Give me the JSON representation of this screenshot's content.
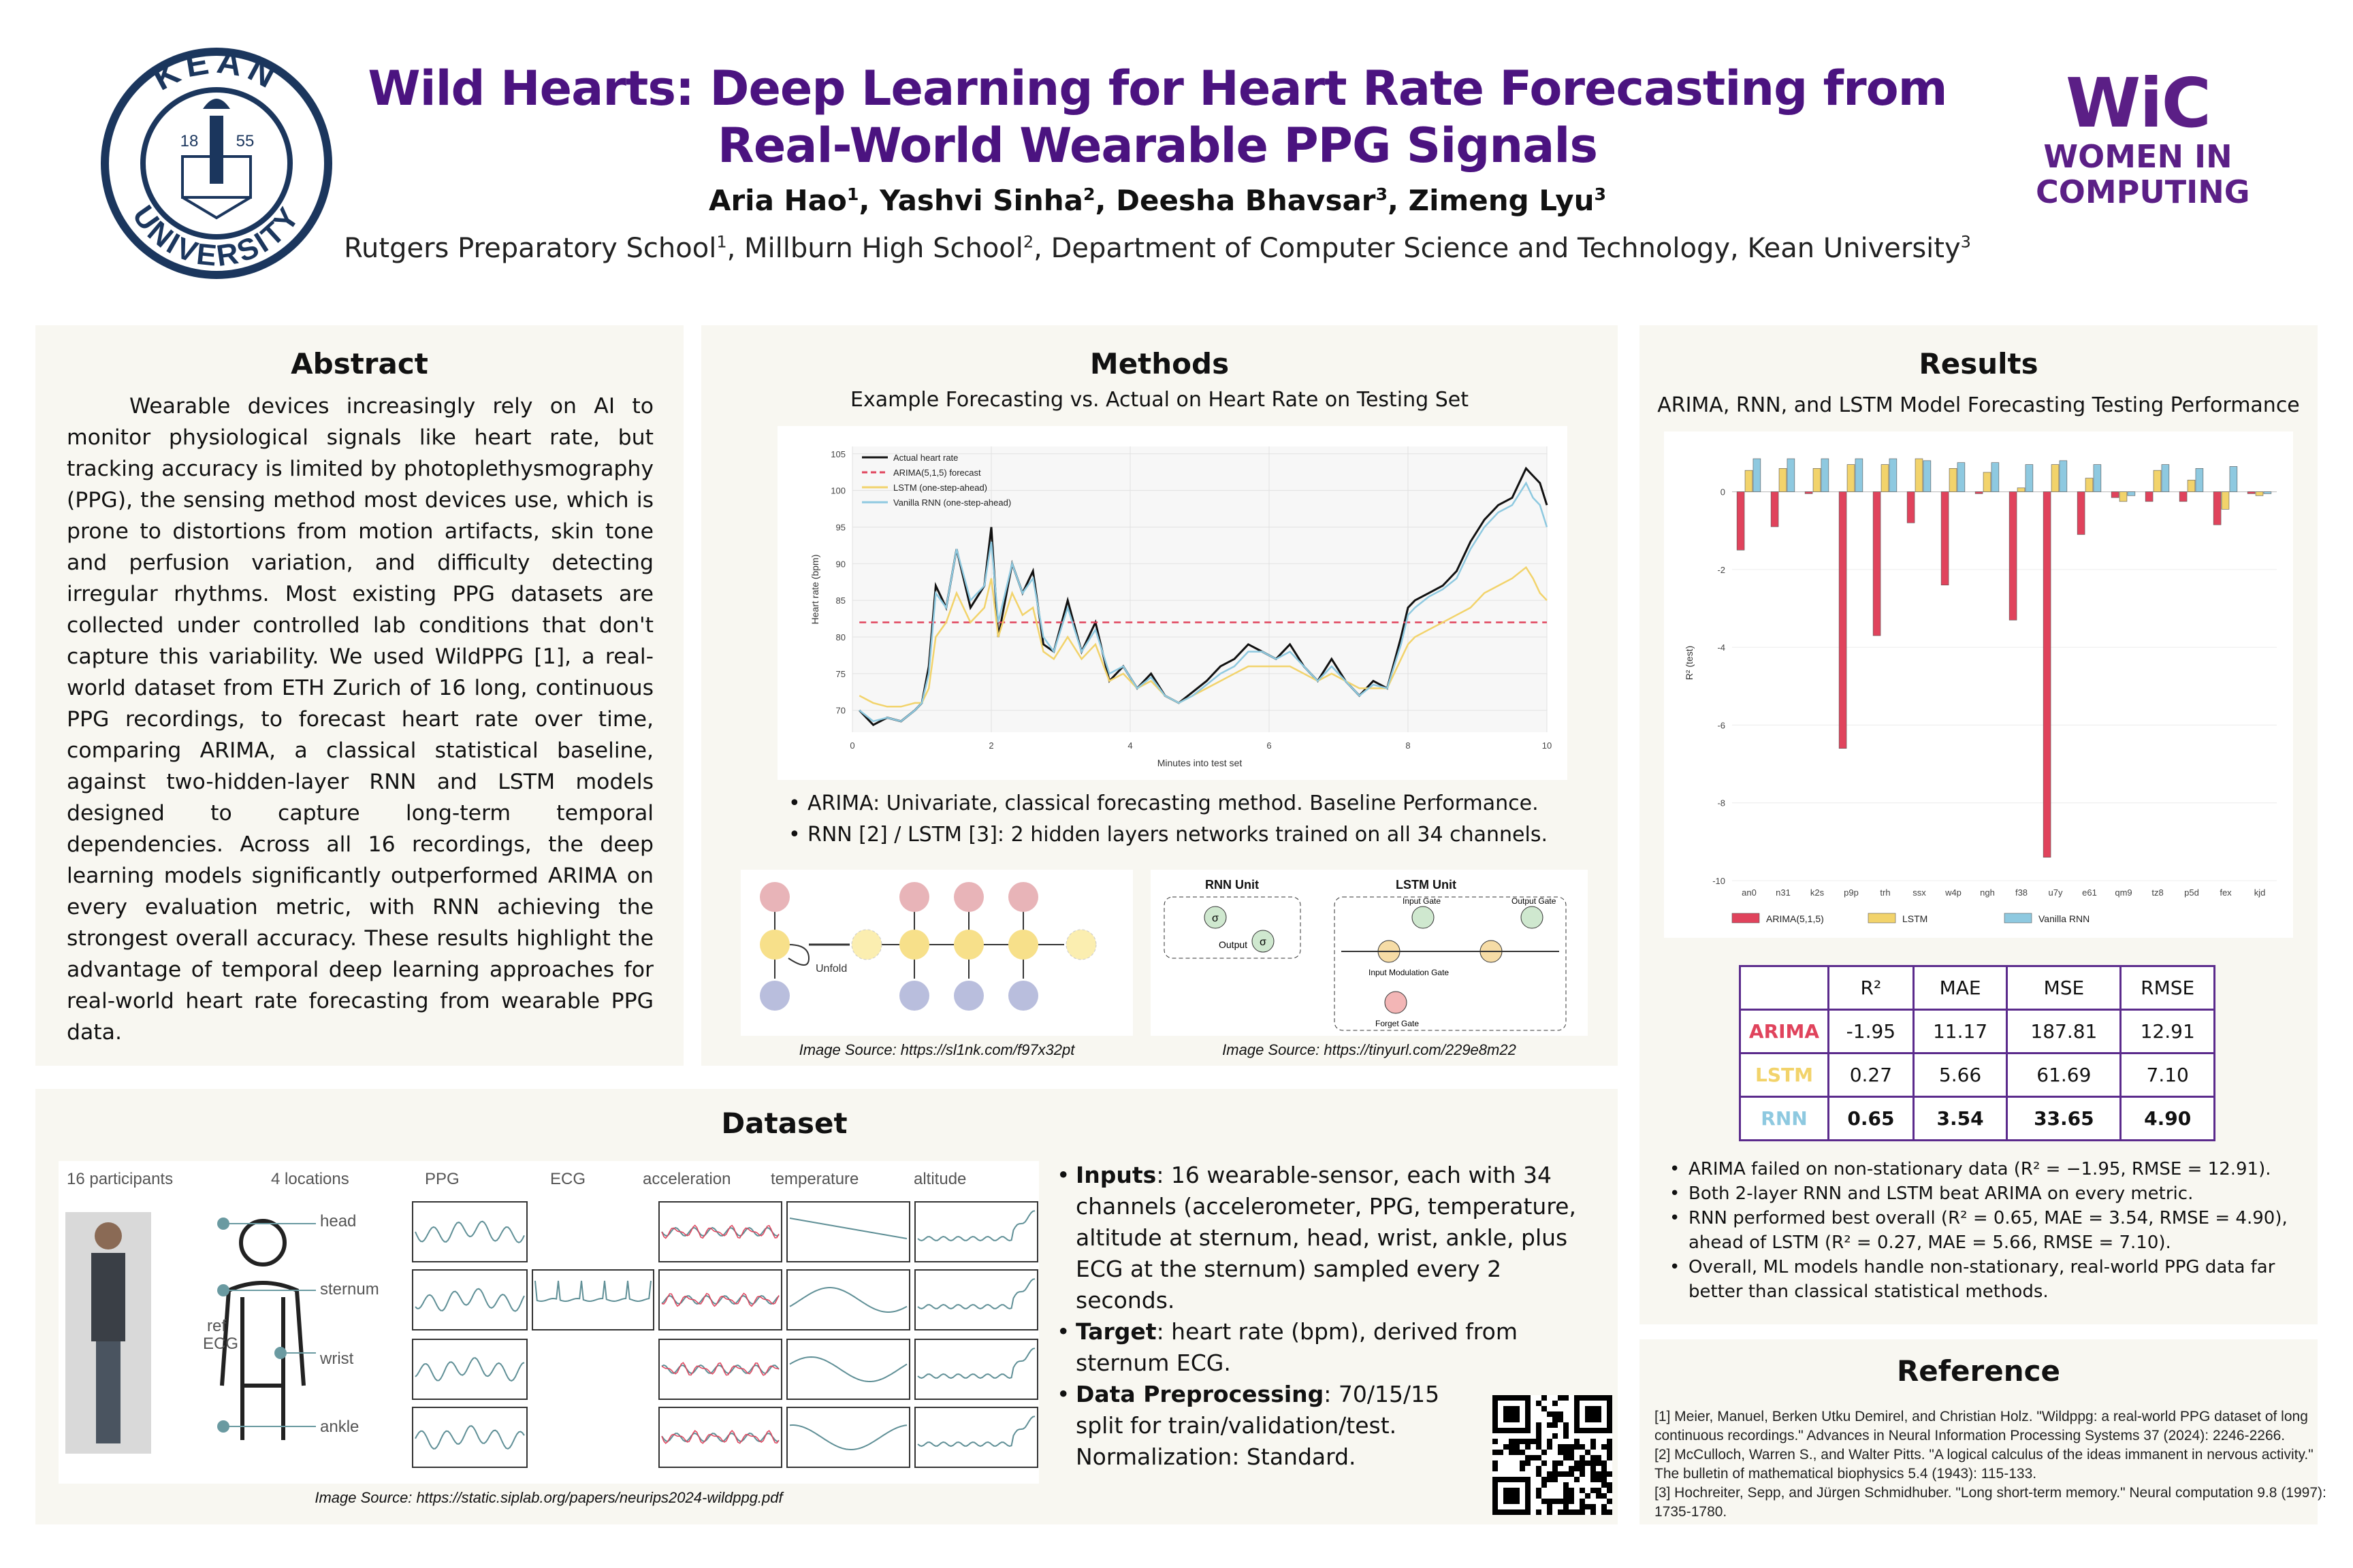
{
  "header": {
    "title_line1": "Wild Hearts: Deep Learning for Heart Rate Forecasting from",
    "title_line2": "Real-World Wearable PPG Signals",
    "authors": [
      {
        "name": "Aria Hao",
        "sup": "1"
      },
      {
        "name": "Yashvi Sinha",
        "sup": "2"
      },
      {
        "name": "Deesha Bhavsar",
        "sup": "3"
      },
      {
        "name": "Zimeng Lyu",
        "sup": "3"
      }
    ],
    "affiliations": [
      {
        "name": "Rutgers Preparatory School",
        "sup": "1"
      },
      {
        "name": "Millburn High School",
        "sup": "2"
      },
      {
        "name": "Department of Computer Science and Technology, Kean University",
        "sup": "3"
      }
    ]
  },
  "logos": {
    "kean": {
      "top": "KEAN",
      "bottom": "UNIVERSITY",
      "year_left": "18",
      "year_right": "55"
    },
    "wic": {
      "mark": "WiC",
      "line1": "WOMEN IN",
      "line2": "COMPUTING",
      "color": "#5b1f86"
    }
  },
  "abstract": {
    "heading": "Abstract",
    "text": "Wearable devices increasingly rely on AI to monitor physiological signals like heart rate, but tracking accuracy is limited by photoplethysmography (PPG), the sensing method most devices use, which is prone to distortions from motion artifacts, skin tone and perfusion variation, and difficulty detecting irregular rhythms. Most existing PPG datasets are collected under controlled lab conditions that don't capture this variability. We used WildPPG [1], a real-world dataset from ETH Zurich of 16 long, continuous PPG recordings, to forecast heart rate over time, comparing ARIMA, a classical statistical baseline, against two-hidden-layer RNN and LSTM models designed to capture long-term temporal dependencies. Across all 16 recordings, the deep learning models significantly outperformed ARIMA on every evaluation metric, with RNN achieving the strongest overall accuracy. These results highlight the advantage of temporal deep learning approaches for real-world heart rate forecasting from wearable PPG data."
  },
  "methods": {
    "heading": "Methods",
    "chart_title": "Example Forecasting vs. Actual on Heart Rate on Testing Set",
    "bullets": [
      "ARIMA: Univariate, classical forecasting method. Baseline Performance.",
      "RNN [2] / LSTM [3]: 2 hidden layers networks trained on all 34 channels."
    ],
    "rnn_caption": "Image Source: https://sl1nk.com/f97x32pt",
    "lstm_caption": "Image Source: https://tinyurl.com/229e8m22",
    "rnn_unit_title": "RNN Unit",
    "lstm_unit_title": "LSTM Unit",
    "unfold_label": "Unfold",
    "rnn_unit_labels": {
      "output": "Output"
    },
    "lstm_unit_labels": {
      "input_gate": "Input Gate",
      "output_gate": "Output Gate",
      "modulation": "Input Modulation Gate",
      "forget": "Forget Gate"
    }
  },
  "results": {
    "heading": "Results",
    "chart_title": "ARIMA, RNN, and LSTM Model Forecasting Testing Performance",
    "table": {
      "headers": [
        "",
        "R²",
        "MAE",
        "MSE",
        "RMSE"
      ],
      "rows": [
        {
          "model": "ARIMA",
          "color": "#e0435c",
          "values": [
            "-1.95",
            "11.17",
            "187.81",
            "12.91"
          ],
          "bold": false
        },
        {
          "model": "LSTM",
          "color": "#f2d36b",
          "values": [
            "0.27",
            "5.66",
            "61.69",
            "7.10"
          ],
          "bold": false
        },
        {
          "model": "RNN",
          "color": "#8ec9e0",
          "values": [
            "0.65",
            "3.54",
            "33.65",
            "4.90"
          ],
          "bold": true
        }
      ]
    },
    "bullets": [
      "ARIMA failed on non-stationary data (R² = −1.95, RMSE = 12.91).",
      "Both 2-layer RNN and LSTM beat ARIMA on every metric.",
      "RNN performed best overall (R² = 0.65, MAE = 3.54, RMSE = 4.90), ahead of LSTM (R² = 0.27, MAE = 5.66, RMSE = 7.10).",
      "Overall, ML models handle non-stationary, real-world PPG data far better than classical statistical methods."
    ]
  },
  "dataset": {
    "heading": "Dataset",
    "fig_labels": {
      "participants": "16 participants",
      "locations": "4 locations",
      "ppg": "PPG",
      "ecg": "ECG",
      "acceleration": "acceleration",
      "temperature": "temperature",
      "altitude": "altitude",
      "head": "head",
      "sternum": "sternum",
      "wrist": "wrist",
      "ankle": "ankle",
      "ref_ecg_1": "ref",
      "ref_ecg_2": "ECG"
    },
    "caption": "Image Source: https://static.siplab.org/papers/neurips2024-wildppg.pdf",
    "bullets": [
      {
        "bold": "Inputs",
        "text": ": 16 wearable-sensor, each with 34 channels (accelerometer, PPG, temperature, altitude at sternum, head, wrist, ankle, plus ECG at the sternum) sampled every 2 seconds."
      },
      {
        "bold": "Target",
        "text": ": heart rate (bpm), derived from sternum ECG."
      },
      {
        "bold": "Data Preprocessing",
        "text": ": 70/15/15 split for train/validation/test. Normalization: Standard."
      }
    ]
  },
  "reference": {
    "heading": "Reference",
    "items": [
      "[1] Meier, Manuel, Berken Utku Demirel, and Christian Holz. \"Wildppg: a real-world PPG dataset of long continuous recordings.\" Advances in Neural Information Processing Systems 37 (2024): 2246-2266.",
      "[2] McCulloch, Warren S., and Walter Pitts. \"A logical calculus of the ideas immanent in nervous activity.\" The bulletin of mathematical biophysics 5.4 (1943): 115-133.",
      "[3] Hochreiter, Sepp, and Jürgen Schmidhuber. \"Long short-term memory.\" Neural computation 9.8 (1997): 1735-1780."
    ]
  },
  "chart_data": [
    {
      "id": "forecast",
      "type": "line",
      "xlabel": "Minutes into test set",
      "ylabel": "Heart rate (bpm)",
      "xlim": [
        0,
        10
      ],
      "ylim": [
        67,
        106
      ],
      "xticks": [
        0,
        2,
        4,
        6,
        8,
        10
      ],
      "yticks": [
        70,
        75,
        80,
        85,
        90,
        95,
        100,
        105
      ],
      "grid": true,
      "legend_position": "top-left",
      "x": [
        0.1,
        0.3,
        0.5,
        0.7,
        0.9,
        1.0,
        1.1,
        1.2,
        1.35,
        1.5,
        1.7,
        1.9,
        2.0,
        2.1,
        2.3,
        2.45,
        2.6,
        2.75,
        2.9,
        3.1,
        3.3,
        3.5,
        3.7,
        3.9,
        4.1,
        4.3,
        4.5,
        4.7,
        4.9,
        5.1,
        5.3,
        5.5,
        5.7,
        5.9,
        6.1,
        6.3,
        6.5,
        6.7,
        6.9,
        7.1,
        7.3,
        7.5,
        7.7,
        7.9,
        8.0,
        8.1,
        8.3,
        8.5,
        8.7,
        8.9,
        9.1,
        9.3,
        9.5,
        9.7,
        9.8,
        9.9,
        10.0
      ],
      "series": [
        {
          "name": "Actual heart rate",
          "color": "#111111",
          "dash": "",
          "values": [
            70,
            68,
            69,
            68.5,
            70,
            71,
            76,
            87,
            84,
            92,
            84,
            87,
            95,
            80,
            90,
            86,
            89,
            79,
            78,
            85,
            78,
            82,
            74,
            76,
            73,
            75,
            72,
            71,
            72.5,
            74,
            76,
            77,
            79,
            78,
            77,
            79,
            76,
            74,
            77,
            74,
            72,
            74,
            73,
            80,
            84,
            85,
            86,
            87,
            89,
            93,
            96,
            98,
            99,
            103,
            102,
            101,
            98
          ]
        },
        {
          "name": "ARIMA(5,1,5) forecast",
          "color": "#e0435c",
          "dash": "10,7",
          "values": [
            82,
            82,
            82,
            82,
            82,
            82,
            82,
            82,
            82,
            82,
            82,
            82,
            82,
            82,
            82,
            82,
            82,
            82,
            82,
            82,
            82,
            82,
            82,
            82,
            82,
            82,
            82,
            82,
            82,
            82,
            82,
            82,
            82,
            82,
            82,
            82,
            82,
            82,
            82,
            82,
            82,
            82,
            82,
            82,
            82,
            82,
            82,
            82,
            82,
            82,
            82,
            82,
            82,
            82,
            82,
            82,
            82
          ]
        },
        {
          "name": "LSTM (one-step-ahead)",
          "color": "#f2d36b",
          "dash": "",
          "values": [
            72,
            71,
            70.5,
            70.5,
            71,
            71,
            73,
            80,
            82,
            86,
            82,
            84,
            88,
            80,
            86,
            83,
            84,
            78,
            77,
            80,
            77,
            79,
            74,
            75,
            73,
            74,
            72,
            71,
            72,
            73,
            74,
            75,
            76,
            76,
            76,
            76,
            75,
            74,
            75,
            74,
            73,
            73,
            73,
            77,
            79,
            80,
            81,
            82,
            83,
            84,
            86,
            87,
            88,
            89.5,
            88,
            86,
            85
          ]
        },
        {
          "name": "Vanilla RNN (one-step-ahead)",
          "color": "#8ec9e0",
          "dash": "",
          "values": [
            70,
            68.5,
            69,
            68.5,
            70,
            71,
            75,
            86,
            84,
            92,
            85,
            87,
            93,
            82,
            90,
            86,
            88,
            80,
            78,
            84,
            78,
            81,
            75,
            76,
            73,
            74.5,
            72,
            71,
            72,
            73.5,
            75,
            76,
            78,
            78,
            77,
            78,
            76,
            74,
            76,
            74,
            72,
            73.5,
            73,
            79,
            83,
            84,
            85.5,
            86.5,
            88,
            92,
            95,
            97,
            98,
            101,
            99,
            98,
            95
          ]
        }
      ]
    },
    {
      "id": "r2",
      "type": "bar",
      "ylabel": "R² (test)",
      "ylim": [
        -10,
        1.2
      ],
      "yticks": [
        0,
        -2,
        -4,
        -6,
        -8,
        -10
      ],
      "legend_position": "bottom",
      "categories": [
        "an0",
        "n31",
        "k2s",
        "p9p",
        "trh",
        "ssx",
        "w4p",
        "ngh",
        "f38",
        "u7y",
        "e61",
        "qm9",
        "tz8",
        "p5d",
        "fex",
        "kjd"
      ],
      "series": [
        {
          "name": "ARIMA(5,1,5)",
          "color": "#e0435c",
          "values": [
            -1.5,
            -0.9,
            -0.05,
            -6.6,
            -3.7,
            -0.8,
            -2.4,
            -0.05,
            -3.3,
            -9.4,
            -1.1,
            -0.15,
            -0.25,
            -0.25,
            -0.85,
            -0.05
          ]
        },
        {
          "name": "LSTM",
          "color": "#f2d36b",
          "values": [
            0.55,
            0.6,
            0.6,
            0.7,
            0.7,
            0.85,
            0.6,
            0.5,
            0.1,
            0.7,
            0.35,
            -0.25,
            0.55,
            0.3,
            -0.45,
            -0.1
          ]
        },
        {
          "name": "Vanilla RNN",
          "color": "#8ec9e0",
          "values": [
            0.85,
            0.85,
            0.85,
            0.85,
            0.85,
            0.8,
            0.75,
            0.75,
            0.7,
            0.8,
            0.7,
            -0.1,
            0.7,
            0.6,
            0.65,
            -0.05
          ]
        }
      ]
    }
  ]
}
